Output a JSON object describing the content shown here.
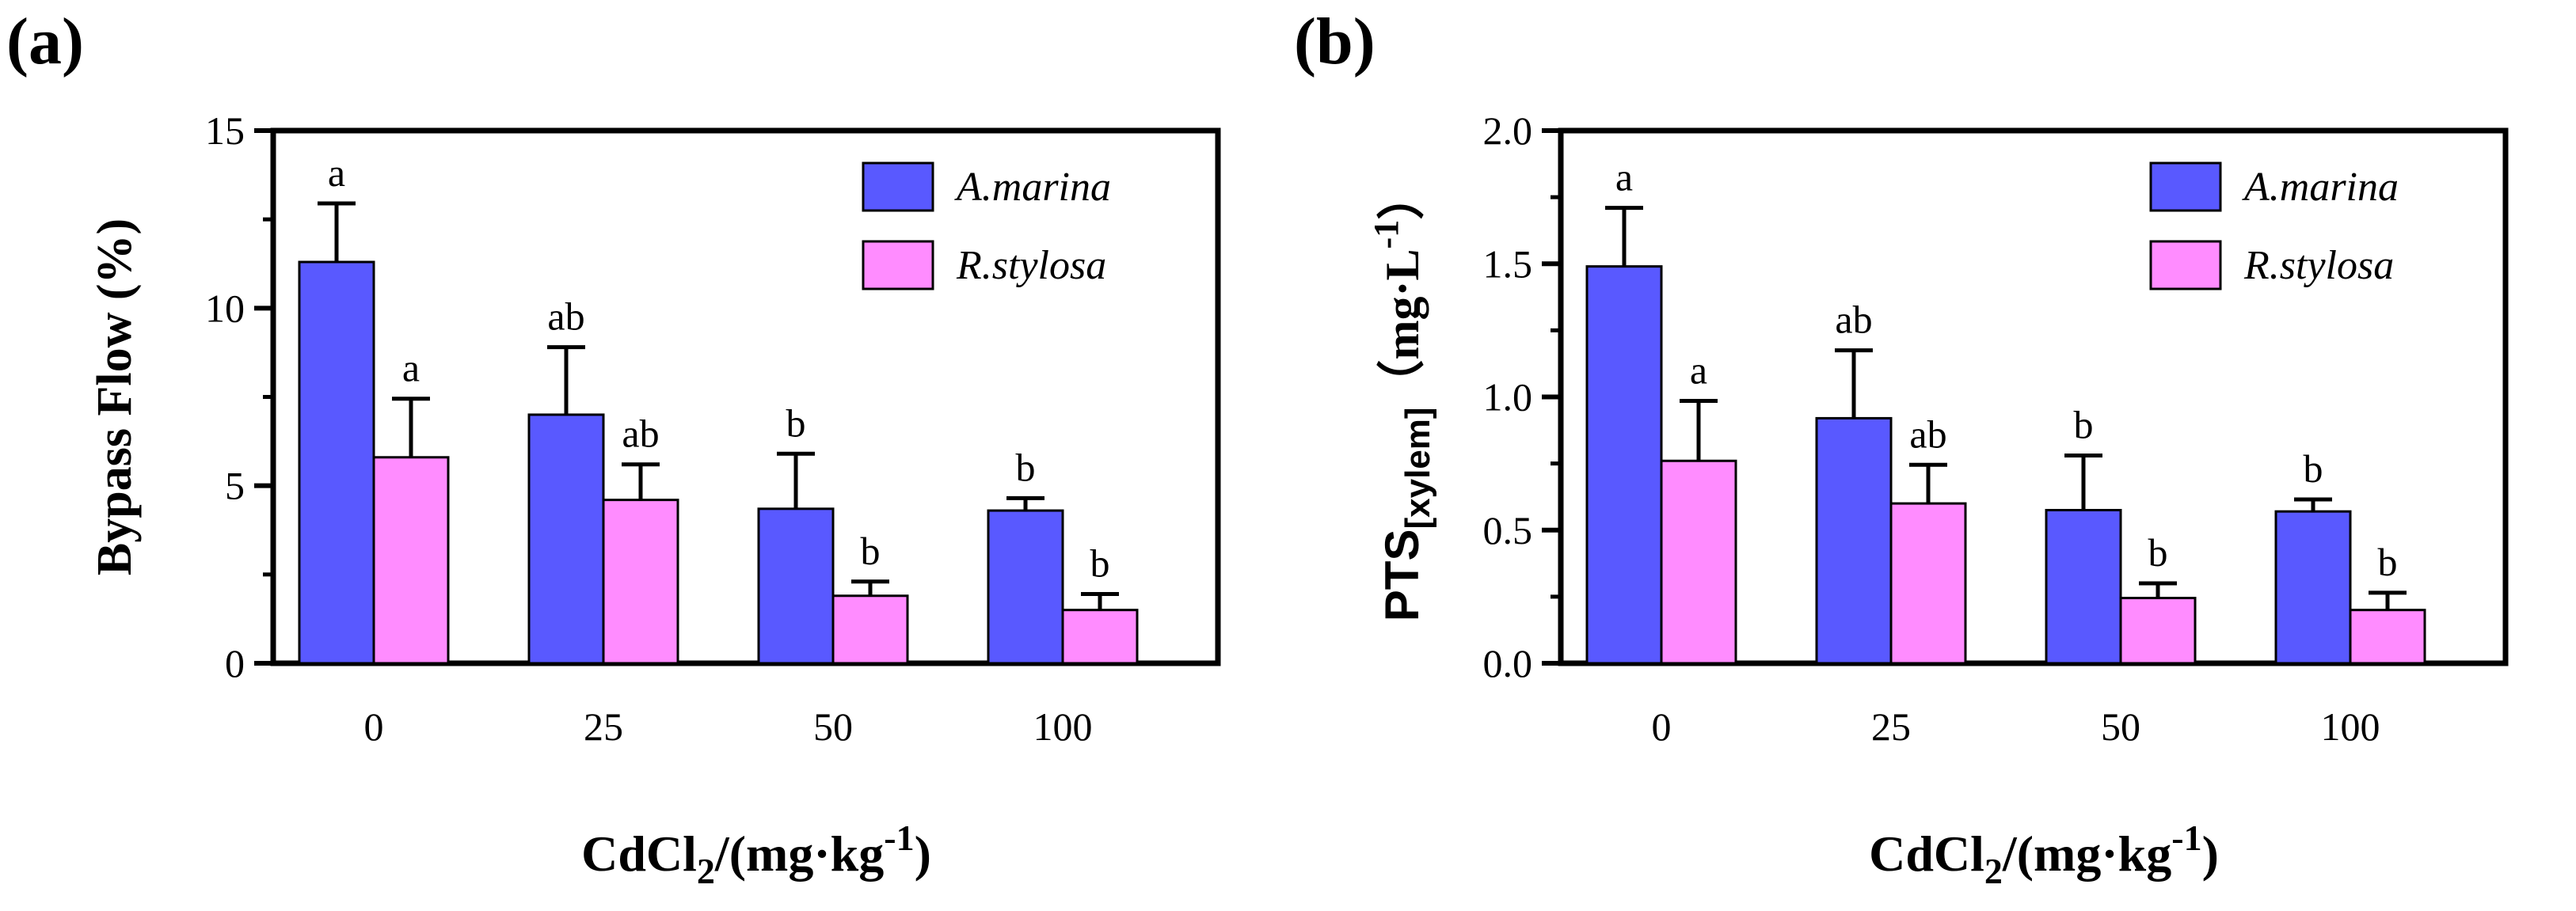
{
  "chart_data": [
    {
      "type": "bar",
      "panel_label": "(a)",
      "categories": [
        "0",
        "25",
        "50",
        "100"
      ],
      "series": [
        {
          "name": "A.marina",
          "color": "#5959ff",
          "values": [
            11.3,
            7.0,
            4.35,
            4.3
          ],
          "errors": [
            1.65,
            1.9,
            1.55,
            0.35
          ],
          "letters": [
            "a",
            "ab",
            "b",
            "b"
          ]
        },
        {
          "name": "R.stylosa",
          "color": "#ff8cff",
          "values": [
            5.8,
            4.6,
            1.9,
            1.5
          ],
          "errors": [
            1.65,
            1.0,
            0.4,
            0.45
          ],
          "letters": [
            "a",
            "ab",
            "b",
            "b"
          ]
        }
      ],
      "ylim": [
        0,
        15
      ],
      "yticks": [
        "0",
        "5",
        "10",
        "15"
      ],
      "yminor": [
        2.5,
        7.5,
        12.5
      ],
      "ylabel": {
        "main": "Bypass Flow (%)",
        "sub": ""
      },
      "xlabel": {
        "base": "CdCl",
        "sub": "2",
        "mid": "/(mg·kg",
        "sup": "-1",
        "end": ")"
      },
      "legend_position": "top-right",
      "grid": false
    },
    {
      "type": "bar",
      "panel_label": "(b)",
      "categories": [
        "0",
        "25",
        "50",
        "100"
      ],
      "series": [
        {
          "name": "A.marina",
          "color": "#5959ff",
          "values": [
            1.49,
            0.92,
            0.575,
            0.57
          ],
          "errors": [
            0.22,
            0.255,
            0.205,
            0.045
          ],
          "letters": [
            "a",
            "ab",
            "b",
            "b"
          ]
        },
        {
          "name": "R.stylosa",
          "color": "#ff8cff",
          "values": [
            0.76,
            0.6,
            0.245,
            0.2
          ],
          "errors": [
            0.225,
            0.145,
            0.055,
            0.065
          ],
          "letters": [
            "a",
            "ab",
            "b",
            "b"
          ]
        }
      ],
      "ylim": [
        0,
        2.0
      ],
      "yticks": [
        "0.0",
        "0.5",
        "1.0",
        "1.5",
        "2.0"
      ],
      "yminor": [
        0.25,
        0.75,
        1.25,
        1.75
      ],
      "ylabel": {
        "main": "PTS",
        "sub": "[xylem]",
        "unit": "（mg·L",
        "sup": "-1",
        "end": "）"
      },
      "xlabel": {
        "base": "CdCl",
        "sub": "2",
        "mid": "/(mg·kg",
        "sup": "-1",
        "end": ")"
      },
      "legend_position": "top-right",
      "grid": false
    }
  ]
}
